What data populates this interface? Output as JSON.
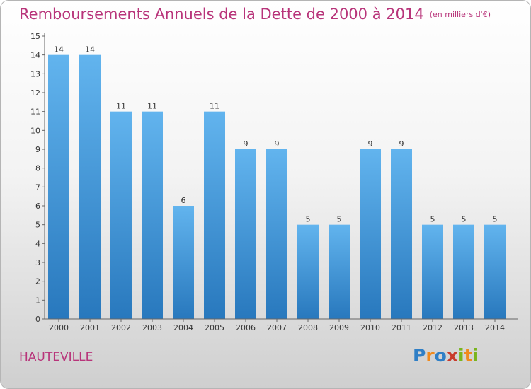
{
  "chart_data": {
    "type": "bar",
    "title": "Remboursements Annuels de la Dette de 2000 à 2014",
    "subtitle": "(en milliers d'€)",
    "categories": [
      "2000",
      "2001",
      "2002",
      "2003",
      "2004",
      "2005",
      "2006",
      "2007",
      "2008",
      "2009",
      "2010",
      "2011",
      "2012",
      "2013",
      "2014"
    ],
    "values": [
      14,
      14,
      11,
      11,
      6,
      11,
      9,
      9,
      5,
      5,
      9,
      9,
      5,
      5,
      5
    ],
    "ylim": [
      0,
      15
    ],
    "yticks": [
      0,
      1,
      2,
      3,
      4,
      5,
      6,
      7,
      8,
      9,
      10,
      11,
      12,
      13,
      14,
      15
    ],
    "grid": false,
    "bar_color": "#5aaee8",
    "bar_color_dark": "#2a7cc2"
  },
  "footer": {
    "city": "HAUTEVILLE",
    "logo_text": "Proxiti"
  },
  "colors": {
    "title": "#b8347a",
    "axis": "#333333"
  }
}
